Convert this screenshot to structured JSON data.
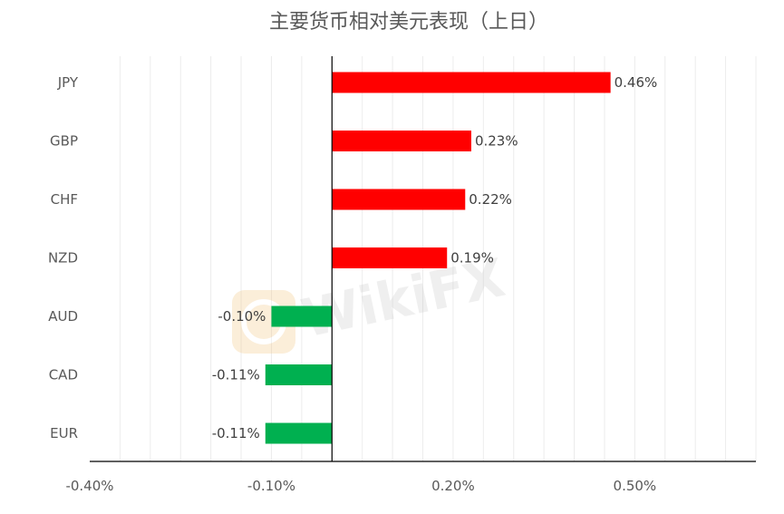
{
  "chart_data": {
    "type": "bar",
    "orientation": "horizontal",
    "title": "主要货币相对美元表现（上日）",
    "categories": [
      "JPY",
      "GBP",
      "CHF",
      "NZD",
      "AUD",
      "CAD",
      "EUR"
    ],
    "values": [
      0.46,
      0.23,
      0.22,
      0.19,
      -0.1,
      -0.11,
      -0.11
    ],
    "value_labels": [
      "0.46%",
      "0.23%",
      "0.22%",
      "0.19%",
      "-0.10%",
      "-0.11%",
      "-0.11%"
    ],
    "xlim": [
      -0.4,
      0.7
    ],
    "x_ticks": [
      -0.4,
      -0.1,
      0.2,
      0.5
    ],
    "x_tick_labels": [
      "-0.40%",
      "-0.10%",
      "0.20%",
      "0.50%"
    ],
    "grid_step": 0.05,
    "grid": true,
    "positive_color": "#ff0000",
    "negative_color": "#00b050",
    "watermark": "WikiFX"
  }
}
